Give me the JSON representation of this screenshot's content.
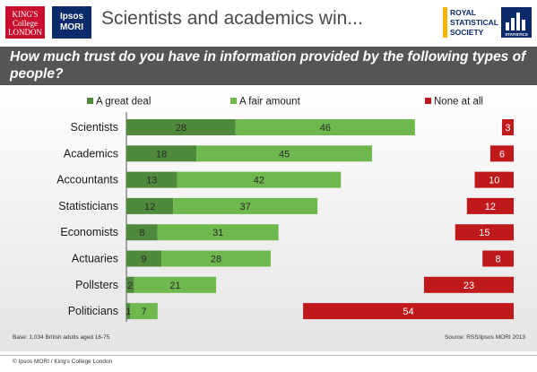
{
  "header": {
    "title": "Scientists and academics win...",
    "kcl_logo": "KING'S College LONDON",
    "ipsos_logo_line1": "Ipsos",
    "ipsos_logo_line2": "MORI",
    "rss_logo_line1": "ROYAL",
    "rss_logo_line2": "STATISTICAL",
    "rss_logo_line3": "SOCIETY",
    "stats_logo": "STATISTICS"
  },
  "question": "How much trust do you have in information provided by the following types of people?",
  "chart_data": {
    "type": "bar",
    "orientation": "horizontal",
    "stacked": true,
    "categories": [
      "Scientists",
      "Academics",
      "Accountants",
      "Statisticians",
      "Economists",
      "Actuaries",
      "Pollsters",
      "Politicians"
    ],
    "series": [
      {
        "name": "A great deal",
        "values": [
          28,
          18,
          13,
          12,
          8,
          9,
          2,
          1
        ],
        "color": "#4f8a3c"
      },
      {
        "name": "A fair amount",
        "values": [
          46,
          45,
          42,
          37,
          31,
          28,
          21,
          7
        ],
        "color": "#6fb84e"
      },
      {
        "name": "None at all",
        "values": [
          3,
          6,
          10,
          12,
          15,
          8,
          23,
          54
        ],
        "color": "#c0191c",
        "align": "right"
      }
    ],
    "legend_position": "top"
  },
  "footer": {
    "base": "Base: 1,034 British adults aged 16-75",
    "source": "Source: RSS/Ipsos MORI 2013",
    "copyright": "© Ipsos MORI / King's College London"
  }
}
